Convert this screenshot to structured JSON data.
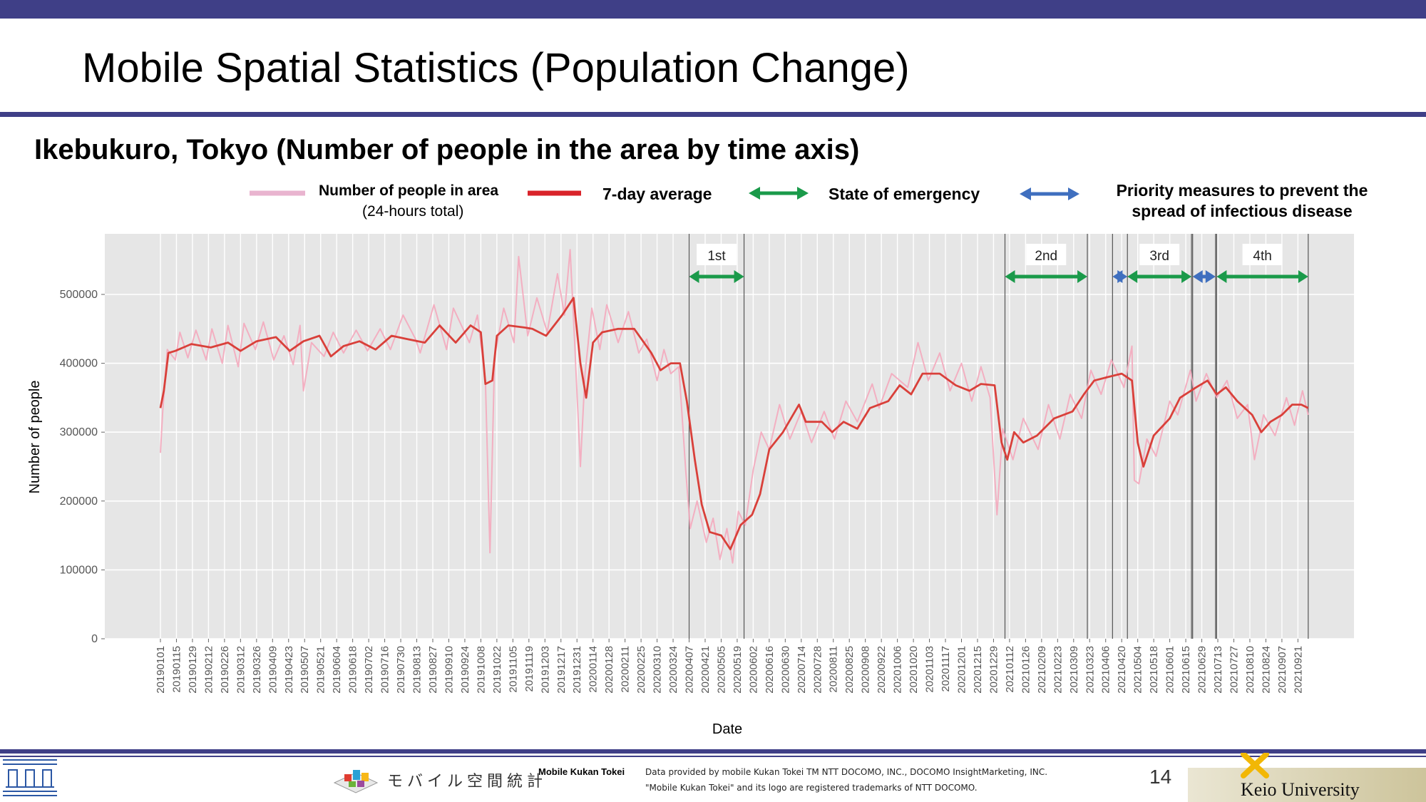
{
  "slide": {
    "title": "Mobile Spatial Statistics (Population Change)",
    "subtitle": "Ikebukuro, Tokyo (Number of people in the area by time axis)",
    "page_number": "14"
  },
  "legend": {
    "daily_label_line1": "Number of people in area",
    "daily_label_line2": "(24-hours total)",
    "avg_label": "7-day average",
    "emergency_label": "State of emergency",
    "priority_label_line1": "Priority measures to prevent the",
    "priority_label_line2": "spread of infectious disease"
  },
  "colors": {
    "brand_bar": "#3f3f87",
    "daily_series": "#f4a8bd",
    "avg_series": "#d9403a",
    "emergency_arrow": "#1a9a4a",
    "priority_arrow": "#3f6fbf",
    "plot_bg": "#e6e6e6"
  },
  "chart_data": {
    "type": "line",
    "xlabel": "Date",
    "ylabel": "Number of people",
    "ylim": [
      0,
      550000
    ],
    "yticks": [
      0,
      100000,
      200000,
      300000,
      400000,
      500000
    ],
    "ytick_labels": [
      "0",
      "100000",
      "200000",
      "300000",
      "400000",
      "500000"
    ],
    "xtick_labels": [
      "20190101",
      "20190115",
      "20190129",
      "20190212",
      "20190226",
      "20190312",
      "20190326",
      "20190409",
      "20190423",
      "20190507",
      "20190521",
      "20190604",
      "20190618",
      "20190702",
      "20190716",
      "20190730",
      "20190813",
      "20190827",
      "20190910",
      "20190924",
      "20191008",
      "20191022",
      "20191105",
      "20191119",
      "20191203",
      "20191217",
      "20191231",
      "20200114",
      "20200128",
      "20200211",
      "20200225",
      "20200310",
      "20200324",
      "20200407",
      "20200421",
      "20200505",
      "20200519",
      "20200602",
      "20200616",
      "20200630",
      "20200714",
      "20200728",
      "20200811",
      "20200825",
      "20200908",
      "20200922",
      "20201006",
      "20201020",
      "20201103",
      "20201117",
      "20201201",
      "20201215",
      "20201229",
      "20210112",
      "20210126",
      "20210209",
      "20210223",
      "20210309",
      "20210323",
      "20210406",
      "20210420",
      "20210504",
      "20210518",
      "20210601",
      "20210615",
      "20210629",
      "20210713",
      "20210727",
      "20210810",
      "20210824",
      "20210907",
      "20210921"
    ],
    "x_range": [
      "2019-01-01",
      "2021-10-01"
    ],
    "grid": true,
    "legend_position": "top",
    "series": [
      {
        "name": "Number of people in area",
        "kind": "daily",
        "points": [
          [
            "2019-01-01",
            270000
          ],
          [
            "2019-01-03",
            330000
          ],
          [
            "2019-01-07",
            420000
          ],
          [
            "2019-01-14",
            405000
          ],
          [
            "2019-01-18",
            445000
          ],
          [
            "2019-01-25",
            408000
          ],
          [
            "2019-02-01",
            448000
          ],
          [
            "2019-02-10",
            405000
          ],
          [
            "2019-02-15",
            450000
          ],
          [
            "2019-02-24",
            400000
          ],
          [
            "2019-03-01",
            455000
          ],
          [
            "2019-03-10",
            395000
          ],
          [
            "2019-03-15",
            458000
          ],
          [
            "2019-03-25",
            420000
          ],
          [
            "2019-04-01",
            460000
          ],
          [
            "2019-04-10",
            405000
          ],
          [
            "2019-04-19",
            440000
          ],
          [
            "2019-04-27",
            398000
          ],
          [
            "2019-05-03",
            455000
          ],
          [
            "2019-05-06",
            360000
          ],
          [
            "2019-05-13",
            430000
          ],
          [
            "2019-05-24",
            410000
          ],
          [
            "2019-06-01",
            445000
          ],
          [
            "2019-06-10",
            415000
          ],
          [
            "2019-06-21",
            448000
          ],
          [
            "2019-07-01",
            418000
          ],
          [
            "2019-07-12",
            450000
          ],
          [
            "2019-07-21",
            420000
          ],
          [
            "2019-08-01",
            470000
          ],
          [
            "2019-08-12",
            435000
          ],
          [
            "2019-08-16",
            415000
          ],
          [
            "2019-08-28",
            485000
          ],
          [
            "2019-09-08",
            420000
          ],
          [
            "2019-09-14",
            480000
          ],
          [
            "2019-09-28",
            430000
          ],
          [
            "2019-10-05",
            470000
          ],
          [
            "2019-10-12",
            375000
          ],
          [
            "2019-10-16",
            125000
          ],
          [
            "2019-10-20",
            410000
          ],
          [
            "2019-10-28",
            480000
          ],
          [
            "2019-11-06",
            430000
          ],
          [
            "2019-11-10",
            555000
          ],
          [
            "2019-11-18",
            440000
          ],
          [
            "2019-11-26",
            495000
          ],
          [
            "2019-12-05",
            445000
          ],
          [
            "2019-12-14",
            530000
          ],
          [
            "2019-12-20",
            470000
          ],
          [
            "2019-12-25",
            565000
          ],
          [
            "2019-12-29",
            430000
          ],
          [
            "2020-01-03",
            250000
          ],
          [
            "2020-01-07",
            385000
          ],
          [
            "2020-01-13",
            480000
          ],
          [
            "2020-01-20",
            420000
          ],
          [
            "2020-01-26",
            485000
          ],
          [
            "2020-02-05",
            430000
          ],
          [
            "2020-02-14",
            475000
          ],
          [
            "2020-02-23",
            415000
          ],
          [
            "2020-03-01",
            435000
          ],
          [
            "2020-03-10",
            375000
          ],
          [
            "2020-03-16",
            420000
          ],
          [
            "2020-03-22",
            385000
          ],
          [
            "2020-03-29",
            395000
          ],
          [
            "2020-04-04",
            245000
          ],
          [
            "2020-04-08",
            160000
          ],
          [
            "2020-04-14",
            200000
          ],
          [
            "2020-04-22",
            140000
          ],
          [
            "2020-04-28",
            175000
          ],
          [
            "2020-05-04",
            115000
          ],
          [
            "2020-05-10",
            160000
          ],
          [
            "2020-05-15",
            110000
          ],
          [
            "2020-05-20",
            185000
          ],
          [
            "2020-05-26",
            165000
          ],
          [
            "2020-06-02",
            245000
          ],
          [
            "2020-06-09",
            300000
          ],
          [
            "2020-06-16",
            275000
          ],
          [
            "2020-06-25",
            340000
          ],
          [
            "2020-07-04",
            290000
          ],
          [
            "2020-07-14",
            330000
          ],
          [
            "2020-07-23",
            285000
          ],
          [
            "2020-08-03",
            330000
          ],
          [
            "2020-08-12",
            290000
          ],
          [
            "2020-08-22",
            345000
          ],
          [
            "2020-09-01",
            315000
          ],
          [
            "2020-09-14",
            370000
          ],
          [
            "2020-09-20",
            335000
          ],
          [
            "2020-10-01",
            385000
          ],
          [
            "2020-10-15",
            365000
          ],
          [
            "2020-10-24",
            430000
          ],
          [
            "2020-11-02",
            375000
          ],
          [
            "2020-11-12",
            415000
          ],
          [
            "2020-11-21",
            360000
          ],
          [
            "2020-12-01",
            400000
          ],
          [
            "2020-12-10",
            345000
          ],
          [
            "2020-12-18",
            395000
          ],
          [
            "2020-12-26",
            350000
          ],
          [
            "2021-01-01",
            180000
          ],
          [
            "2021-01-06",
            305000
          ],
          [
            "2021-01-15",
            260000
          ],
          [
            "2021-01-24",
            320000
          ],
          [
            "2021-02-06",
            275000
          ],
          [
            "2021-02-15",
            340000
          ],
          [
            "2021-02-25",
            290000
          ],
          [
            "2021-03-06",
            355000
          ],
          [
            "2021-03-16",
            320000
          ],
          [
            "2021-03-24",
            390000
          ],
          [
            "2021-04-02",
            355000
          ],
          [
            "2021-04-11",
            405000
          ],
          [
            "2021-04-22",
            365000
          ],
          [
            "2021-04-29",
            425000
          ],
          [
            "2021-05-01",
            230000
          ],
          [
            "2021-05-05",
            225000
          ],
          [
            "2021-05-12",
            290000
          ],
          [
            "2021-05-20",
            265000
          ],
          [
            "2021-06-01",
            345000
          ],
          [
            "2021-06-08",
            325000
          ],
          [
            "2021-06-19",
            390000
          ],
          [
            "2021-06-24",
            345000
          ],
          [
            "2021-07-03",
            385000
          ],
          [
            "2021-07-12",
            350000
          ],
          [
            "2021-07-21",
            375000
          ],
          [
            "2021-07-30",
            320000
          ],
          [
            "2021-08-08",
            340000
          ],
          [
            "2021-08-14",
            260000
          ],
          [
            "2021-08-22",
            325000
          ],
          [
            "2021-09-01",
            295000
          ],
          [
            "2021-09-11",
            350000
          ],
          [
            "2021-09-18",
            310000
          ],
          [
            "2021-09-25",
            360000
          ],
          [
            "2021-09-30",
            325000
          ]
        ]
      },
      {
        "name": "7-day average",
        "kind": "average",
        "points": [
          [
            "2019-01-01",
            335000
          ],
          [
            "2019-01-04",
            360000
          ],
          [
            "2019-01-08",
            415000
          ],
          [
            "2019-01-14",
            418000
          ],
          [
            "2019-01-28",
            428000
          ],
          [
            "2019-02-14",
            423000
          ],
          [
            "2019-03-01",
            430000
          ],
          [
            "2019-03-12",
            418000
          ],
          [
            "2019-03-26",
            432000
          ],
          [
            "2019-04-12",
            438000
          ],
          [
            "2019-04-24",
            418000
          ],
          [
            "2019-05-06",
            432000
          ],
          [
            "2019-05-20",
            440000
          ],
          [
            "2019-05-30",
            410000
          ],
          [
            "2019-06-10",
            425000
          ],
          [
            "2019-06-24",
            432000
          ],
          [
            "2019-07-08",
            420000
          ],
          [
            "2019-07-22",
            440000
          ],
          [
            "2019-08-05",
            435000
          ],
          [
            "2019-08-20",
            430000
          ],
          [
            "2019-09-02",
            455000
          ],
          [
            "2019-09-16",
            430000
          ],
          [
            "2019-09-29",
            455000
          ],
          [
            "2019-10-08",
            445000
          ],
          [
            "2019-10-12",
            370000
          ],
          [
            "2019-10-18",
            375000
          ],
          [
            "2019-10-22",
            440000
          ],
          [
            "2019-11-01",
            455000
          ],
          [
            "2019-11-15",
            452000
          ],
          [
            "2019-11-22",
            450000
          ],
          [
            "2019-12-04",
            440000
          ],
          [
            "2019-12-18",
            470000
          ],
          [
            "2019-12-28",
            495000
          ],
          [
            "2020-01-03",
            400000
          ],
          [
            "2020-01-08",
            350000
          ],
          [
            "2020-01-14",
            430000
          ],
          [
            "2020-01-22",
            445000
          ],
          [
            "2020-02-05",
            450000
          ],
          [
            "2020-02-19",
            450000
          ],
          [
            "2020-03-05",
            415000
          ],
          [
            "2020-03-13",
            390000
          ],
          [
            "2020-03-22",
            400000
          ],
          [
            "2020-03-30",
            400000
          ],
          [
            "2020-04-05",
            345000
          ],
          [
            "2020-04-12",
            260000
          ],
          [
            "2020-04-18",
            195000
          ],
          [
            "2020-04-25",
            155000
          ],
          [
            "2020-05-05",
            150000
          ],
          [
            "2020-05-13",
            130000
          ],
          [
            "2020-05-22",
            165000
          ],
          [
            "2020-06-01",
            180000
          ],
          [
            "2020-06-08",
            210000
          ],
          [
            "2020-06-16",
            275000
          ],
          [
            "2020-06-28",
            300000
          ],
          [
            "2020-07-12",
            340000
          ],
          [
            "2020-07-18",
            315000
          ],
          [
            "2020-08-01",
            315000
          ],
          [
            "2020-08-10",
            300000
          ],
          [
            "2020-08-20",
            315000
          ],
          [
            "2020-09-01",
            305000
          ],
          [
            "2020-09-12",
            335000
          ],
          [
            "2020-09-28",
            345000
          ],
          [
            "2020-10-08",
            368000
          ],
          [
            "2020-10-18",
            355000
          ],
          [
            "2020-10-28",
            385000
          ],
          [
            "2020-11-12",
            385000
          ],
          [
            "2020-11-26",
            368000
          ],
          [
            "2020-12-08",
            360000
          ],
          [
            "2020-12-18",
            370000
          ],
          [
            "2020-12-30",
            368000
          ],
          [
            "2021-01-05",
            285000
          ],
          [
            "2021-01-10",
            260000
          ],
          [
            "2021-01-16",
            300000
          ],
          [
            "2021-01-24",
            285000
          ],
          [
            "2021-02-05",
            295000
          ],
          [
            "2021-02-20",
            320000
          ],
          [
            "2021-03-08",
            330000
          ],
          [
            "2021-03-18",
            355000
          ],
          [
            "2021-03-27",
            375000
          ],
          [
            "2021-04-08",
            380000
          ],
          [
            "2021-04-20",
            385000
          ],
          [
            "2021-04-29",
            375000
          ],
          [
            "2021-05-04",
            285000
          ],
          [
            "2021-05-09",
            250000
          ],
          [
            "2021-05-18",
            295000
          ],
          [
            "2021-06-01",
            320000
          ],
          [
            "2021-06-10",
            350000
          ],
          [
            "2021-06-24",
            365000
          ],
          [
            "2021-07-04",
            375000
          ],
          [
            "2021-07-12",
            355000
          ],
          [
            "2021-07-20",
            365000
          ],
          [
            "2021-07-30",
            345000
          ],
          [
            "2021-08-12",
            325000
          ],
          [
            "2021-08-20",
            300000
          ],
          [
            "2021-08-28",
            315000
          ],
          [
            "2021-09-07",
            325000
          ],
          [
            "2021-09-16",
            340000
          ],
          [
            "2021-09-24",
            340000
          ],
          [
            "2021-09-30",
            335000
          ]
        ]
      }
    ],
    "periods": [
      {
        "label": "1st",
        "type": "emergency",
        "start": "2020-04-07",
        "end": "2020-05-25"
      },
      {
        "label": "2nd",
        "type": "emergency",
        "start": "2021-01-08",
        "end": "2021-03-21"
      },
      {
        "label": "",
        "type": "priority",
        "start": "2021-04-12",
        "end": "2021-04-25"
      },
      {
        "label": "3rd",
        "type": "emergency",
        "start": "2021-04-25",
        "end": "2021-06-20"
      },
      {
        "label": "",
        "type": "priority",
        "start": "2021-06-21",
        "end": "2021-07-11"
      },
      {
        "label": "4th",
        "type": "emergency",
        "start": "2021-07-12",
        "end": "2021-09-30"
      }
    ]
  },
  "footer": {
    "mkt_japanese": "モバイル空間統計",
    "mkt_english": "Mobile Kukan Tokei",
    "credit_line1": "Data provided by mobile Kukan Tokei TM NTT DOCOMO, INC., DOCOMO InsightMarketing, INC.",
    "credit_line2": "\"Mobile Kukan Tokei\" and its logo are registered trademarks of NTT DOCOMO.",
    "university": "Keio University"
  }
}
